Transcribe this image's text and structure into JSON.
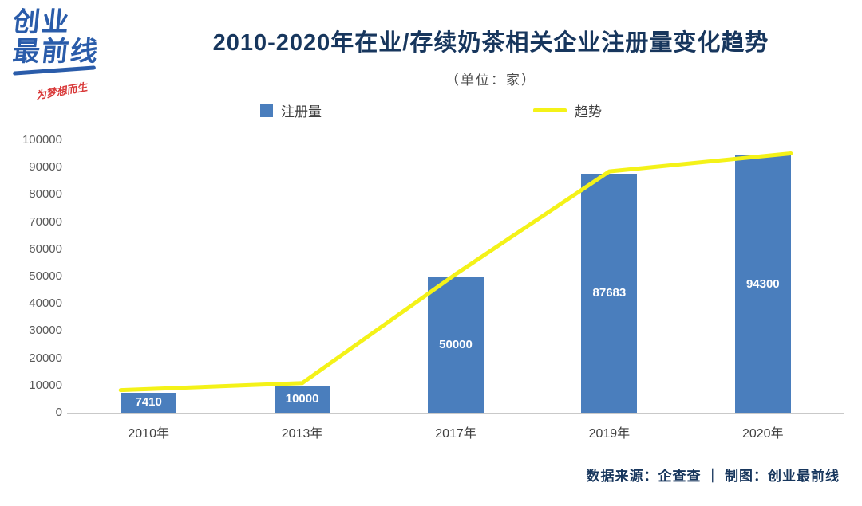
{
  "logo": {
    "line1": "创业",
    "line2": "最前线",
    "tagline": "为梦想而生"
  },
  "header": {
    "title": "2010-2020年在业/存续奶茶相关企业注册量变化趋势",
    "subtitle": "（单位：家）"
  },
  "legend": {
    "bars_label": "注册量",
    "trend_label": "趋势"
  },
  "footer": {
    "text": "数据来源：企查查 ｜ 制图：创业最前线"
  },
  "colors": {
    "bar": "#4a7ebd",
    "trend": "#f4f218",
    "title": "#17365d",
    "axis_text": "#595959"
  },
  "chart_data": {
    "type": "bar",
    "categories": [
      "2010年",
      "2013年",
      "2017年",
      "2019年",
      "2020年"
    ],
    "series": [
      {
        "name": "注册量",
        "type": "bar",
        "values": [
          7410,
          10000,
          50000,
          87683,
          94300
        ]
      },
      {
        "name": "趋势",
        "type": "line",
        "values": [
          7410,
          10000,
          50000,
          87683,
          94300
        ]
      }
    ],
    "title": "2010-2020年在业/存续奶茶相关企业注册量变化趋势",
    "xlabel": "",
    "ylabel": "家",
    "ylim": [
      0,
      100000
    ],
    "yticks": [
      0,
      10000,
      20000,
      30000,
      40000,
      50000,
      60000,
      70000,
      80000,
      90000,
      100000
    ],
    "grid": false,
    "legend_position": "top",
    "bar_value_labels": true
  }
}
